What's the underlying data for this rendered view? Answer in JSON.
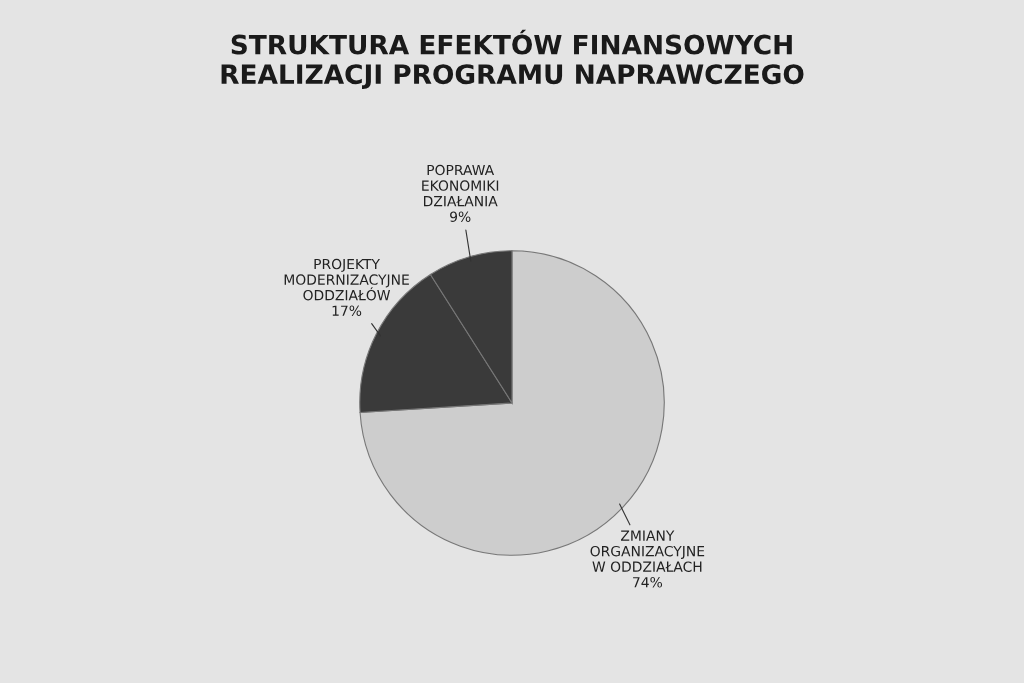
{
  "chart_data": {
    "type": "pie",
    "title": "STRUKTURA EFEKTÓW FINANSOWYCH\nREALIZACJI PROGRAMU NAPRAWCZEGO",
    "categories": [
      "ZMIANY\nORGANIZACYJNE\nW ODDZIAŁACH",
      "PROJEKTY\nMODERNIZACYJNE\nODDZIAŁÓW",
      "POPRAWA\nEKONOMIKI\nDZIAŁANIA"
    ],
    "values": [
      74,
      17,
      9
    ],
    "value_labels": [
      "74%",
      "17%",
      "9%"
    ],
    "colors": [
      "#cdcdcd",
      "#3a3a3a",
      "#3a3a3a"
    ]
  }
}
